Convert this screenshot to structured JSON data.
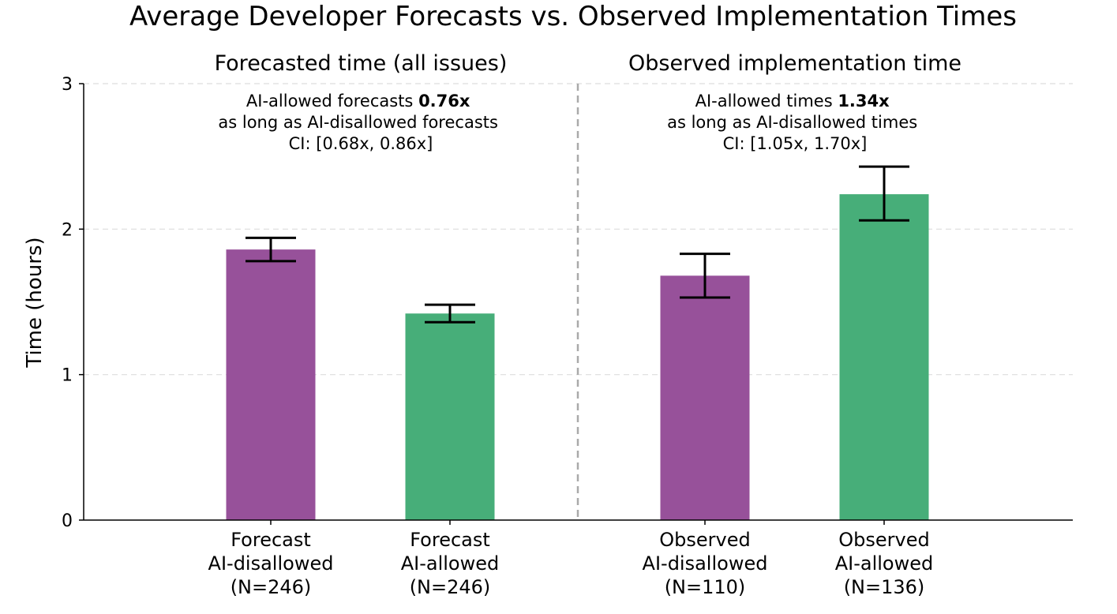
{
  "chart_data": {
    "type": "bar",
    "title": "Average Developer Forecasts vs. Observed Implementation Times",
    "ylabel": "Time (hours)",
    "ylim": [
      0,
      3
    ],
    "yticks": [
      "0",
      "1",
      "2",
      "3"
    ],
    "grid": "horizontal dashed",
    "colors": {
      "ai_disallowed": "#97519A",
      "ai_allowed": "#47AE79"
    },
    "panels": [
      {
        "subtitle": "Forecasted time (all issues)",
        "annotation": {
          "line1_prefix": "AI-allowed forecasts ",
          "line1_bold": "0.76x",
          "line2": "as long as AI-disallowed forecasts",
          "line3": "CI: [0.68x, 0.86x]"
        },
        "bars": [
          {
            "label_lines": [
              "Forecast",
              "AI-disallowed",
              "(N=246)"
            ],
            "value": 1.86,
            "err_low": 1.78,
            "err_high": 1.94,
            "group": "ai_disallowed"
          },
          {
            "label_lines": [
              "Forecast",
              "AI-allowed",
              "(N=246)"
            ],
            "value": 1.42,
            "err_low": 1.36,
            "err_high": 1.48,
            "group": "ai_allowed"
          }
        ]
      },
      {
        "subtitle": "Observed implementation time",
        "annotation": {
          "line1_prefix": "AI-allowed times ",
          "line1_bold": "1.34x",
          "line2": "as long as AI-disallowed times",
          "line3": "CI: [1.05x, 1.70x]"
        },
        "bars": [
          {
            "label_lines": [
              "Observed",
              "AI-disallowed",
              "(N=110)"
            ],
            "value": 1.68,
            "err_low": 1.53,
            "err_high": 1.83,
            "group": "ai_disallowed"
          },
          {
            "label_lines": [
              "Observed",
              "AI-allowed",
              "(N=136)"
            ],
            "value": 2.24,
            "err_low": 2.06,
            "err_high": 2.43,
            "group": "ai_allowed"
          }
        ]
      }
    ]
  }
}
